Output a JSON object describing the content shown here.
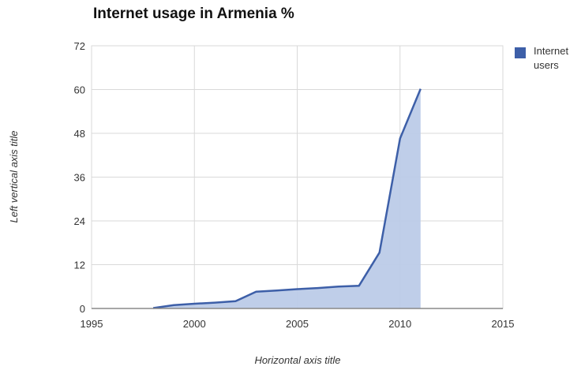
{
  "chart_data": {
    "type": "area",
    "title": "Internet usage in Armenia %",
    "xlabel": "Horizontal axis title",
    "ylabel": "Left vertical axis title",
    "xlim": [
      1995,
      2015
    ],
    "ylim": [
      0,
      72
    ],
    "x_ticks": [
      "1995",
      "2000",
      "2005",
      "2010",
      "2015"
    ],
    "y_ticks": [
      "0",
      "12",
      "24",
      "36",
      "48",
      "60",
      "72"
    ],
    "grid": true,
    "legend_position": "right",
    "colors": {
      "line": "#3d5fa8",
      "fill": "#bccbe8",
      "grid": "#d9d9d9",
      "axis": "#888888"
    },
    "series": [
      {
        "name": "Internet users",
        "x": [
          1998,
          1999,
          2000,
          2001,
          2002,
          2003,
          2004,
          2005,
          2006,
          2007,
          2008,
          2009,
          2010,
          2011
        ],
        "y": [
          0.1,
          0.9,
          1.3,
          1.6,
          2.0,
          4.6,
          4.9,
          5.3,
          5.6,
          6.0,
          6.2,
          15.3,
          46.6,
          60.2
        ]
      }
    ]
  }
}
